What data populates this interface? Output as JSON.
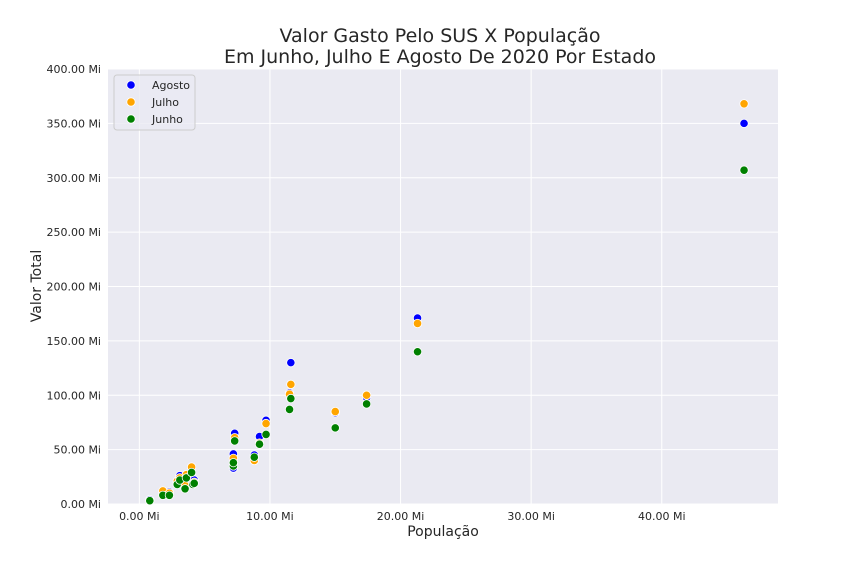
{
  "chart_data": {
    "type": "scatter",
    "title_line1": "Valor Gasto Pelo SUS X População",
    "title_line2": "Em Junho, Julho E Agosto De 2020 Por Estado",
    "xlabel": "População",
    "ylabel": "Valor Total",
    "xlim": [
      -2.4,
      48.9
    ],
    "ylim": [
      0,
      400
    ],
    "x_ticks": [
      {
        "value": 0,
        "label": "0.00 Mi"
      },
      {
        "value": 10,
        "label": "10.00 Mi"
      },
      {
        "value": 20,
        "label": "20.00 Mi"
      },
      {
        "value": 30,
        "label": "30.00 Mi"
      },
      {
        "value": 40,
        "label": "40.00 Mi"
      }
    ],
    "y_ticks": [
      {
        "value": 0,
        "label": "0.00 Mi"
      },
      {
        "value": 50,
        "label": "50.00 Mi"
      },
      {
        "value": 100,
        "label": "100.00 Mi"
      },
      {
        "value": 150,
        "label": "150.00 Mi"
      },
      {
        "value": 200,
        "label": "200.00 Mi"
      },
      {
        "value": 250,
        "label": "250.00 Mi"
      },
      {
        "value": 300,
        "label": "300.00 Mi"
      },
      {
        "value": 350,
        "label": "350.00 Mi"
      },
      {
        "value": 400,
        "label": "400.00 Mi"
      }
    ],
    "grid": true,
    "legend_position": "top-left",
    "background_color": "#eaeaf2",
    "series": [
      {
        "name": "Agosto",
        "color": "#0000ff",
        "points": [
          [
            0.8,
            4
          ],
          [
            1.8,
            9
          ],
          [
            2.3,
            11
          ],
          [
            2.9,
            20
          ],
          [
            3.1,
            26
          ],
          [
            3.5,
            16
          ],
          [
            3.6,
            23
          ],
          [
            4.0,
            31
          ],
          [
            4.1,
            21
          ],
          [
            4.2,
            22
          ],
          [
            7.2,
            33
          ],
          [
            7.2,
            46
          ],
          [
            7.3,
            65
          ],
          [
            8.8,
            45
          ],
          [
            9.2,
            62
          ],
          [
            9.7,
            77
          ],
          [
            11.5,
            102
          ],
          [
            11.6,
            130
          ],
          [
            15.0,
            84
          ],
          [
            17.4,
            98
          ],
          [
            21.3,
            171
          ],
          [
            46.3,
            350
          ]
        ]
      },
      {
        "name": "Julho",
        "color": "#ffa500",
        "points": [
          [
            0.8,
            3
          ],
          [
            1.8,
            12
          ],
          [
            2.3,
            10
          ],
          [
            2.9,
            21
          ],
          [
            3.1,
            24
          ],
          [
            3.5,
            17
          ],
          [
            3.6,
            27
          ],
          [
            4.0,
            34
          ],
          [
            4.1,
            18
          ],
          [
            4.2,
            20
          ],
          [
            7.2,
            37
          ],
          [
            7.2,
            42
          ],
          [
            7.3,
            61
          ],
          [
            8.8,
            40
          ],
          [
            9.2,
            56
          ],
          [
            9.7,
            74
          ],
          [
            11.5,
            101
          ],
          [
            11.6,
            110
          ],
          [
            15.0,
            85
          ],
          [
            17.4,
            100
          ],
          [
            21.3,
            166
          ],
          [
            46.3,
            368
          ]
        ]
      },
      {
        "name": "Junho",
        "color": "#008000",
        "points": [
          [
            0.8,
            3
          ],
          [
            1.8,
            8
          ],
          [
            2.3,
            8
          ],
          [
            2.9,
            18
          ],
          [
            3.1,
            22
          ],
          [
            3.5,
            14
          ],
          [
            3.6,
            24
          ],
          [
            4.0,
            29
          ],
          [
            4.1,
            18
          ],
          [
            4.2,
            19
          ],
          [
            7.2,
            35
          ],
          [
            7.2,
            38
          ],
          [
            7.3,
            58
          ],
          [
            8.8,
            43
          ],
          [
            9.2,
            55
          ],
          [
            9.7,
            64
          ],
          [
            11.5,
            87
          ],
          [
            11.6,
            97
          ],
          [
            15.0,
            70
          ],
          [
            17.4,
            92
          ],
          [
            21.3,
            140
          ],
          [
            46.3,
            307
          ]
        ]
      }
    ]
  }
}
